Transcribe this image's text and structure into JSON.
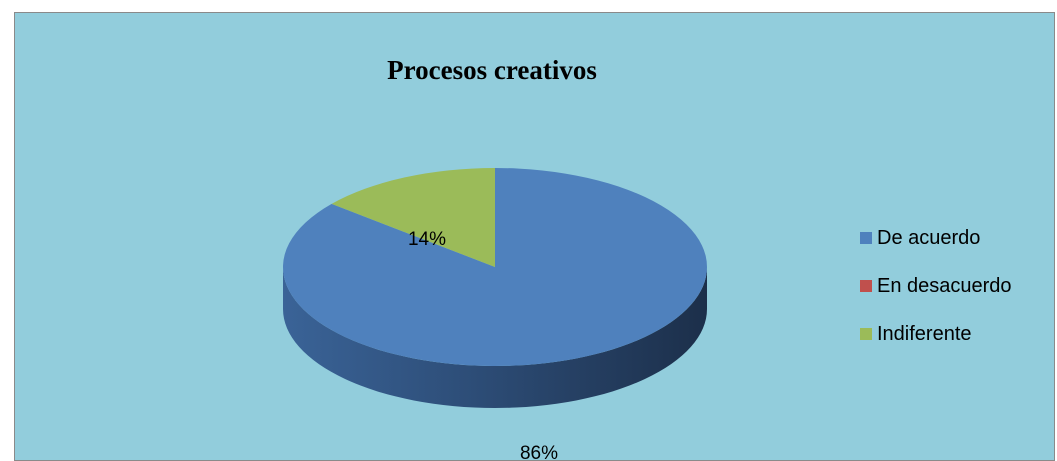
{
  "colors": {
    "background": "#92CDDC",
    "frame_border": "#8A8A8A"
  },
  "chart_data": {
    "type": "pie",
    "title": "Procesos creativos",
    "three_d": true,
    "legend_position": "right",
    "categories": [
      "De acuerdo",
      "En desacuerdo",
      "Indiferente"
    ],
    "values": [
      86,
      0,
      14
    ],
    "data_labels": [
      "86%",
      "",
      "14%"
    ],
    "colors": [
      "#4F81BD",
      "#C0504D",
      "#9BBB59"
    ]
  }
}
